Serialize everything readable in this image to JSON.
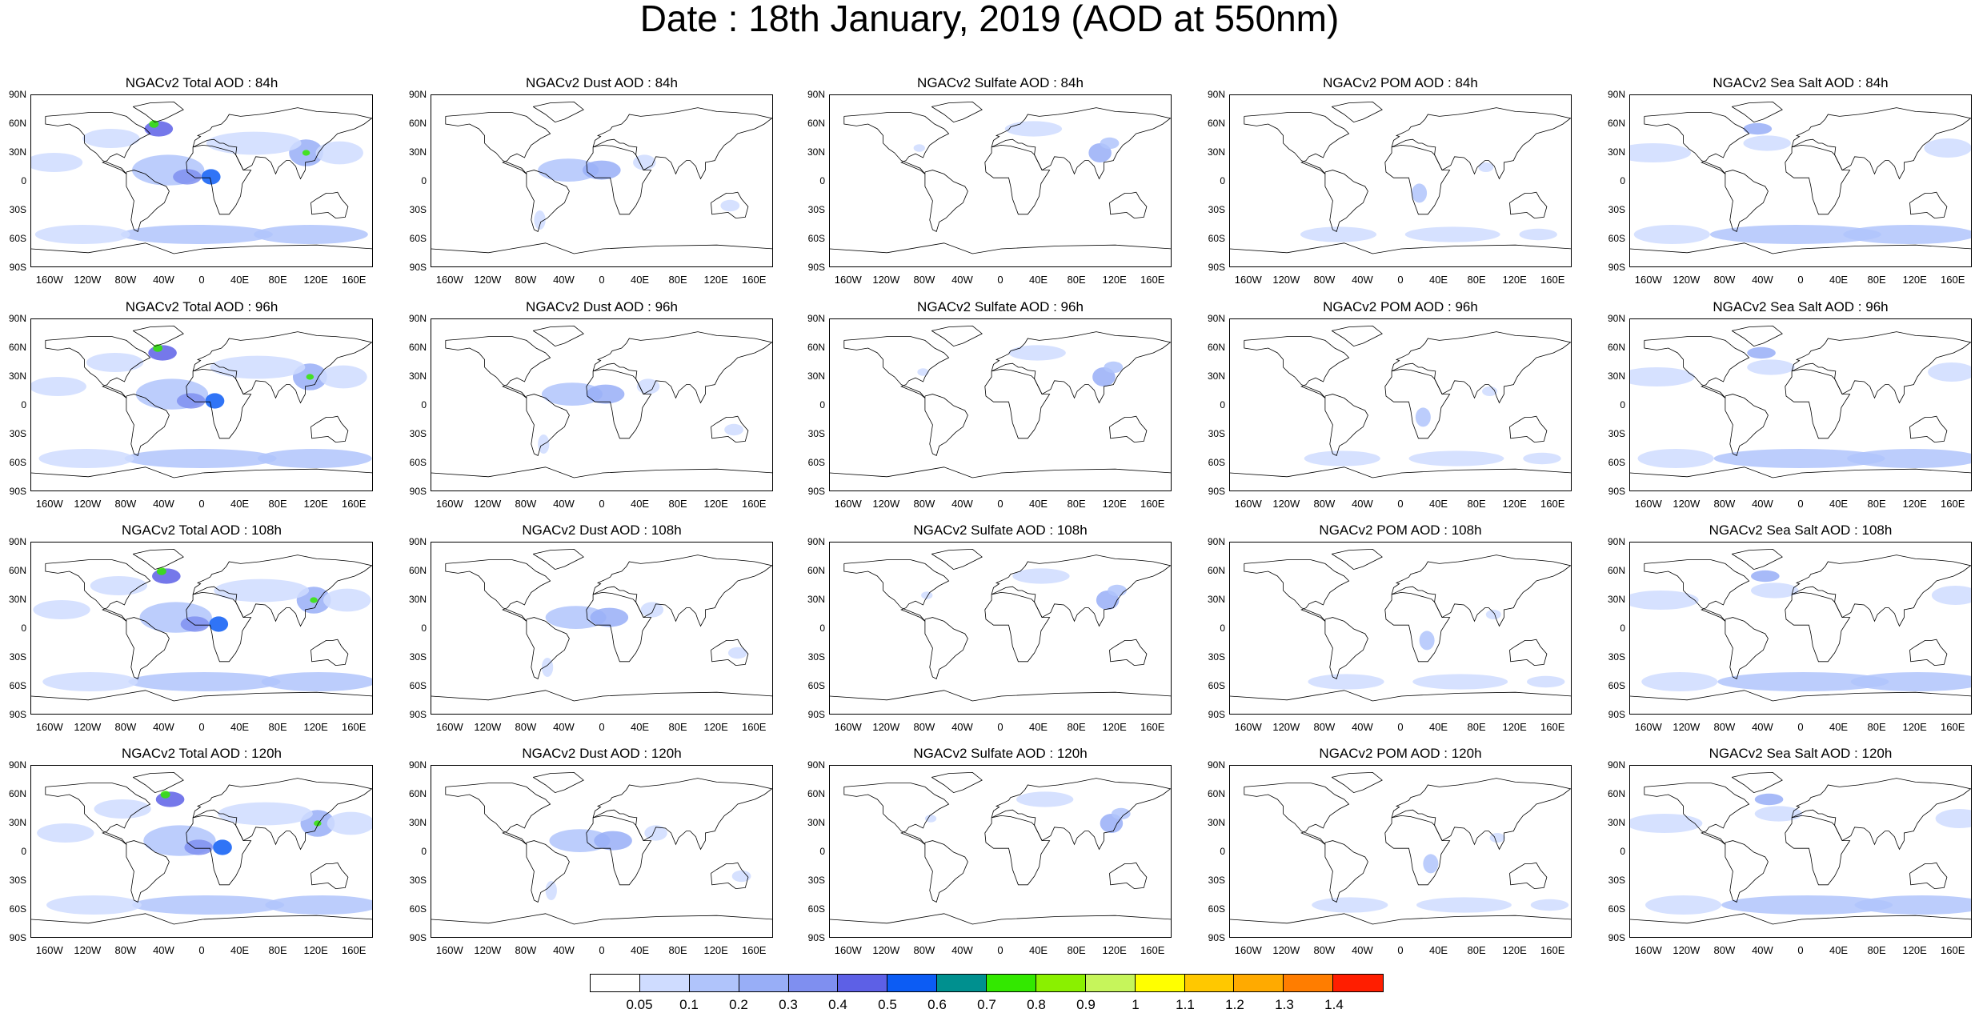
{
  "title": "Date : 18th January, 2019 (AOD at 550nm)",
  "panels": [
    {
      "title": "NGACv2 Total AOD : 84h",
      "species": "total"
    },
    {
      "title": "NGACv2 Dust AOD : 84h",
      "species": "dust"
    },
    {
      "title": "NGACv2 Sulfate AOD : 84h",
      "species": "sulfate"
    },
    {
      "title": "NGACv2 POM AOD : 84h",
      "species": "pom"
    },
    {
      "title": "NGACv2 Sea Salt AOD : 84h",
      "species": "seasalt"
    },
    {
      "title": "NGACv2 Total AOD : 96h",
      "species": "total"
    },
    {
      "title": "NGACv2 Dust AOD : 96h",
      "species": "dust"
    },
    {
      "title": "NGACv2 Sulfate AOD : 96h",
      "species": "sulfate"
    },
    {
      "title": "NGACv2 POM AOD : 96h",
      "species": "pom"
    },
    {
      "title": "NGACv2 Sea Salt AOD : 96h",
      "species": "seasalt"
    },
    {
      "title": "NGACv2 Total AOD : 108h",
      "species": "total"
    },
    {
      "title": "NGACv2 Dust AOD : 108h",
      "species": "dust"
    },
    {
      "title": "NGACv2 Sulfate AOD : 108h",
      "species": "sulfate"
    },
    {
      "title": "NGACv2 POM AOD : 108h",
      "species": "pom"
    },
    {
      "title": "NGACv2 Sea Salt AOD : 108h",
      "species": "seasalt"
    },
    {
      "title": "NGACv2 Total AOD : 120h",
      "species": "total"
    },
    {
      "title": "NGACv2 Dust AOD : 120h",
      "species": "dust"
    },
    {
      "title": "NGACv2 Sulfate AOD : 120h",
      "species": "sulfate"
    },
    {
      "title": "NGACv2 POM AOD : 120h",
      "species": "pom"
    },
    {
      "title": "NGACv2 Sea Salt  AOD : 120h",
      "species": "seasalt"
    }
  ],
  "lat_labels": [
    "90N",
    "60N",
    "30N",
    "0",
    "30S",
    "60S",
    "90S"
  ],
  "lon_labels": [
    "160W",
    "120W",
    "80W",
    "40W",
    "0",
    "40E",
    "80E",
    "120E",
    "160E"
  ],
  "colorbar": {
    "colors": [
      "#ffffff",
      "#cfdcff",
      "#b0c4fb",
      "#98aef7",
      "#7f8ff0",
      "#5d60e6",
      "#0c5cf4",
      "#00908f",
      "#33e800",
      "#8af000",
      "#c6f55b",
      "#ffff00",
      "#ffc800",
      "#ffaa00",
      "#ff7d00",
      "#ff1e00"
    ],
    "ticks": [
      "0.05",
      "0.1",
      "0.2",
      "0.3",
      "0.4",
      "0.5",
      "0.6",
      "0.7",
      "0.8",
      "0.9",
      "1",
      "1.1",
      "1.2",
      "1.3",
      "1.4"
    ]
  }
}
